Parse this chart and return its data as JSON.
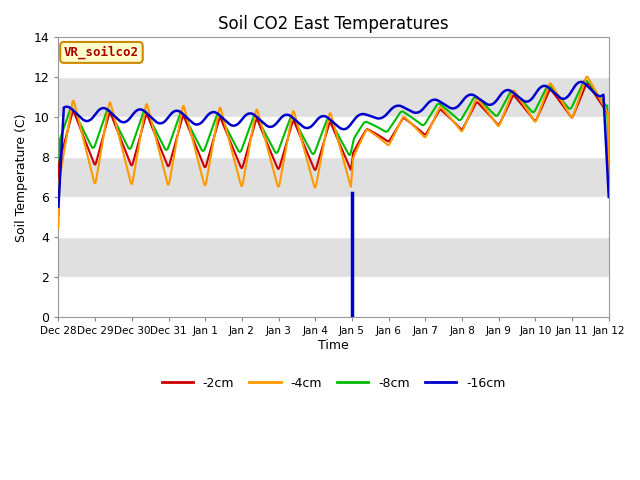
{
  "title": "Soil CO2 East Temperatures",
  "xlabel": "Time",
  "ylabel": "Soil Temperature (C)",
  "ylim": [
    0,
    14
  ],
  "yticks": [
    0,
    2,
    4,
    6,
    8,
    10,
    12,
    14
  ],
  "colors": {
    "-2cm": "#cc0000",
    "-4cm": "#ff9900",
    "-8cm": "#00bb00",
    "-16cm": "#0000cc"
  },
  "legend_label": "VR_soilco2",
  "legend_box_color": "#ffffcc",
  "legend_box_edge": "#cc8800",
  "xtick_labels": [
    "Dec 28",
    "Dec 29",
    "Dec 30",
    "Dec 31",
    "Jan 1",
    "Jan 2",
    "Jan 3",
    "Jan 4",
    "Jan 5",
    "Jan 6",
    "Jan 7",
    "Jan 8",
    "Jan 9",
    "Jan 10",
    "Jan 11",
    "Jan 12"
  ],
  "n_days": 15,
  "jan5_day": 8,
  "background_color": "#ffffff",
  "plot_bg_color": "#e8e8e8",
  "band_light": "#ffffff",
  "band_dark": "#e0e0e0"
}
